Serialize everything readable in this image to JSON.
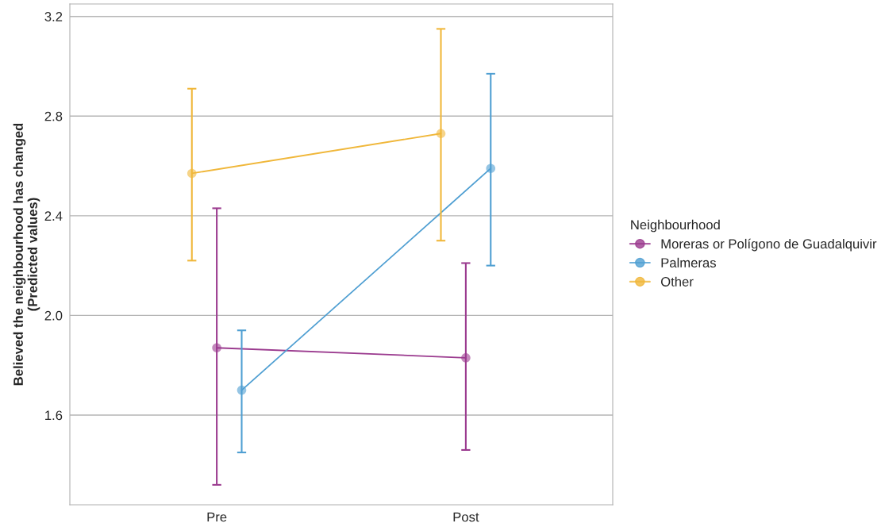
{
  "chart_data": {
    "type": "line",
    "ylabel": "Believed the neighbourhood has changed\n(Predicted values)",
    "legend_title": "Neighbourhood",
    "categories": [
      "Pre",
      "Post"
    ],
    "series": [
      {
        "name": "Moreras or Polígono de Guadalquivir",
        "color": "#9b3b8f",
        "values": [
          1.87,
          1.83
        ],
        "errors": [
          [
            1.32,
            2.43
          ],
          [
            1.46,
            2.21
          ]
        ]
      },
      {
        "name": "Palmeras",
        "color": "#4f9fd2",
        "values": [
          1.7,
          2.59
        ],
        "errors": [
          [
            1.45,
            1.94
          ],
          [
            2.2,
            2.97
          ]
        ]
      },
      {
        "name": "Other",
        "color": "#f0b73a",
        "values": [
          2.57,
          2.73
        ],
        "errors": [
          [
            2.22,
            2.91
          ],
          [
            2.3,
            3.15
          ]
        ]
      }
    ],
    "ylim": [
      1.24,
      3.25
    ],
    "yticks": [
      1.6,
      {
        "value": 2.0,
        "label": "2.0"
      },
      2.4,
      2.8,
      3.2
    ],
    "grid": "y",
    "legend": "right",
    "marker": "circle",
    "line_style": "solid"
  }
}
